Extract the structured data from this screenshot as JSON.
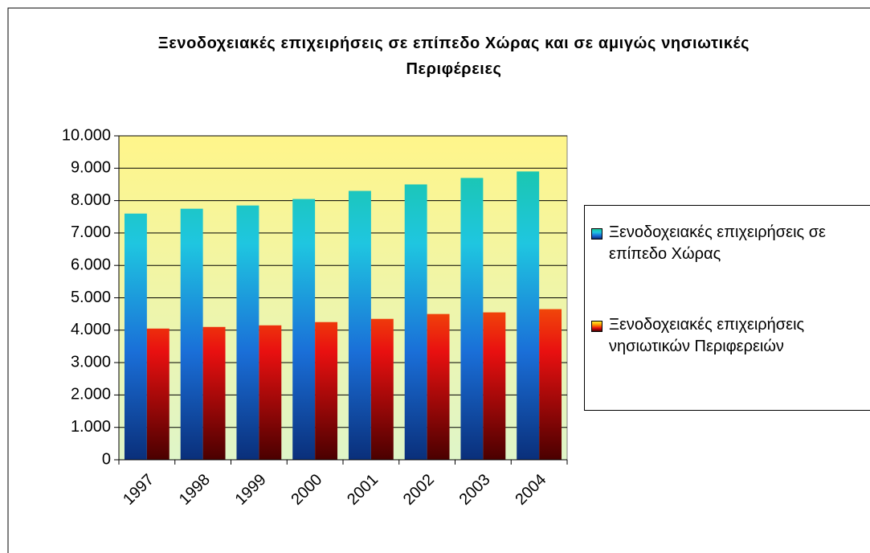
{
  "chart_data": {
    "type": "bar",
    "title": "Ξενοδοχειακές επιχειρήσεις σε επίπεδο Χώρας και σε αμιγώς νησιωτικές Περιφέρειες",
    "categories": [
      "1997",
      "1998",
      "1999",
      "2000",
      "2001",
      "2002",
      "2003",
      "2004"
    ],
    "series": [
      {
        "name": "Ξενοδοχειακές επιχειρήσεις σε επίπεδο Χώρας",
        "color": [
          "#0a2f7a",
          "#1a6fd8",
          "#1fc6e0",
          "#18c79a"
        ],
        "values": [
          7600,
          7750,
          7850,
          8050,
          8300,
          8500,
          8700,
          8900
        ]
      },
      {
        "name": "Ξενοδοχειακές επιχειρήσεις νησιωτικών Περιφερειών",
        "color": [
          "#4a0000",
          "#e81010",
          "#ff9a00",
          "#ffee30"
        ],
        "values": [
          4050,
          4100,
          4150,
          4250,
          4350,
          4500,
          4550,
          4650
        ]
      }
    ],
    "ylim": [
      0,
      10000
    ],
    "yticks": [
      0,
      {
        "value": 1000,
        "label": "1.000"
      },
      {
        "value": 2000,
        "label": "2.000"
      },
      {
        "value": 3000,
        "label": "3.000"
      },
      {
        "value": 4000,
        "label": "4.000"
      },
      {
        "value": 5000,
        "label": "5.000"
      },
      {
        "value": 6000,
        "label": "6.000"
      },
      {
        "value": 7000,
        "label": "7.000"
      },
      {
        "value": 8000,
        "label": "8.000"
      },
      {
        "value": 9000,
        "label": "9.000"
      },
      {
        "value": 10000,
        "label": "10.000"
      }
    ],
    "grid": true,
    "legend": "right"
  }
}
